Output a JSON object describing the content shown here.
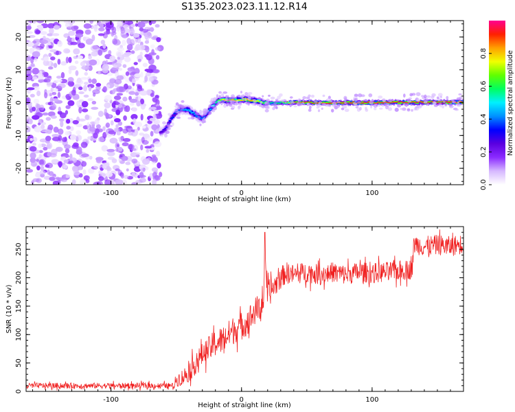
{
  "title": "S135.2023.023.11.12.R14",
  "chart_data": [
    {
      "type": "heatmap",
      "name": "frequency-spectrogram",
      "xlabel": "Height of straight line (km)",
      "ylabel": "Frequency (Hz)",
      "xlim": [
        -165,
        170
      ],
      "ylim": [
        -25,
        25
      ],
      "xticks": [
        -100,
        0,
        100
      ],
      "yticks": [
        -20,
        -10,
        0,
        10,
        20
      ],
      "grid": false,
      "colorbar": {
        "label": "Normalized spectral amplitude",
        "range": [
          0.0,
          1.0
        ],
        "ticks": [
          0.0,
          0.2,
          0.4,
          0.6,
          0.8
        ],
        "colors": [
          "#ffffff",
          "#d6b8ff",
          "#8b2bff",
          "#5a00e0",
          "#0000ff",
          "#0090ff",
          "#00f0ff",
          "#00ff60",
          "#60ff00",
          "#f0ff00",
          "#ffa000",
          "#ff2000",
          "#ff0090"
        ]
      },
      "noise_region": {
        "x": [
          -165,
          -62
        ],
        "y": [
          -25,
          25
        ],
        "amplitude": [
          0.02,
          0.18
        ]
      },
      "ridge": {
        "x": [
          -62,
          -58,
          -54,
          -50,
          -46,
          -42,
          -38,
          -34,
          -30,
          -26,
          -22,
          -18,
          -14,
          -10,
          -6,
          -2,
          2,
          6,
          10,
          14,
          18,
          24,
          30,
          40,
          60,
          80,
          100,
          130,
          170
        ],
        "y": [
          -9,
          -8,
          -5,
          -3,
          -2,
          -2,
          -3,
          -4,
          -5,
          -3,
          -1,
          0.5,
          0.8,
          0.8,
          0.6,
          0.8,
          1.0,
          0.8,
          0.6,
          0.3,
          0,
          -0.2,
          0,
          0.1,
          0,
          0,
          0,
          0.1,
          0.1
        ],
        "amplitude": [
          0.25,
          0.3,
          0.35,
          0.35,
          0.4,
          0.45,
          0.45,
          0.4,
          0.4,
          0.35,
          0.5,
          0.6,
          0.75,
          0.85,
          0.8,
          0.75,
          0.8,
          0.85,
          0.8,
          0.7,
          0.6,
          0.55,
          0.6,
          0.85,
          0.92,
          0.95,
          0.95,
          0.95,
          0.95
        ]
      }
    },
    {
      "type": "line",
      "name": "snr-profile",
      "xlabel": "Height of straight line (km)",
      "ylabel": "SNR (10 * v/v)",
      "xlim": [
        -165,
        170
      ],
      "ylim": [
        0,
        290
      ],
      "xticks": [
        -100,
        0,
        100
      ],
      "yticks": [
        0,
        50,
        100,
        150,
        200,
        250
      ],
      "grid": false,
      "color": "#f02020",
      "series": [
        {
          "x": [
            -165,
            -140,
            -120,
            -100,
            -80,
            -60,
            -52,
            -50,
            -45,
            -40,
            -35,
            -30,
            -25,
            -20,
            -15,
            -10,
            -5,
            0,
            5,
            10,
            15,
            17,
            18,
            19,
            20,
            25,
            30,
            35,
            40,
            50,
            60,
            70,
            80,
            90,
            100,
            110,
            120,
            130,
            131,
            132,
            140,
            150,
            160,
            170
          ],
          "y": [
            10,
            10,
            10,
            10,
            10,
            10,
            10,
            20,
            25,
            35,
            50,
            65,
            75,
            85,
            90,
            100,
            110,
            115,
            125,
            140,
            150,
            165,
            280,
            170,
            170,
            185,
            200,
            210,
            205,
            210,
            205,
            210,
            205,
            210,
            208,
            210,
            212,
            215,
            220,
            260,
            255,
            258,
            255,
            260
          ],
          "noise_amplitude": [
            5,
            5,
            5,
            5,
            5,
            5,
            5,
            12,
            15,
            18,
            20,
            20,
            22,
            25,
            25,
            25,
            25,
            25,
            25,
            25,
            25,
            25,
            10,
            25,
            25,
            20,
            20,
            18,
            18,
            18,
            18,
            18,
            18,
            18,
            18,
            18,
            18,
            18,
            18,
            18,
            18,
            18,
            18,
            18
          ]
        }
      ]
    }
  ]
}
